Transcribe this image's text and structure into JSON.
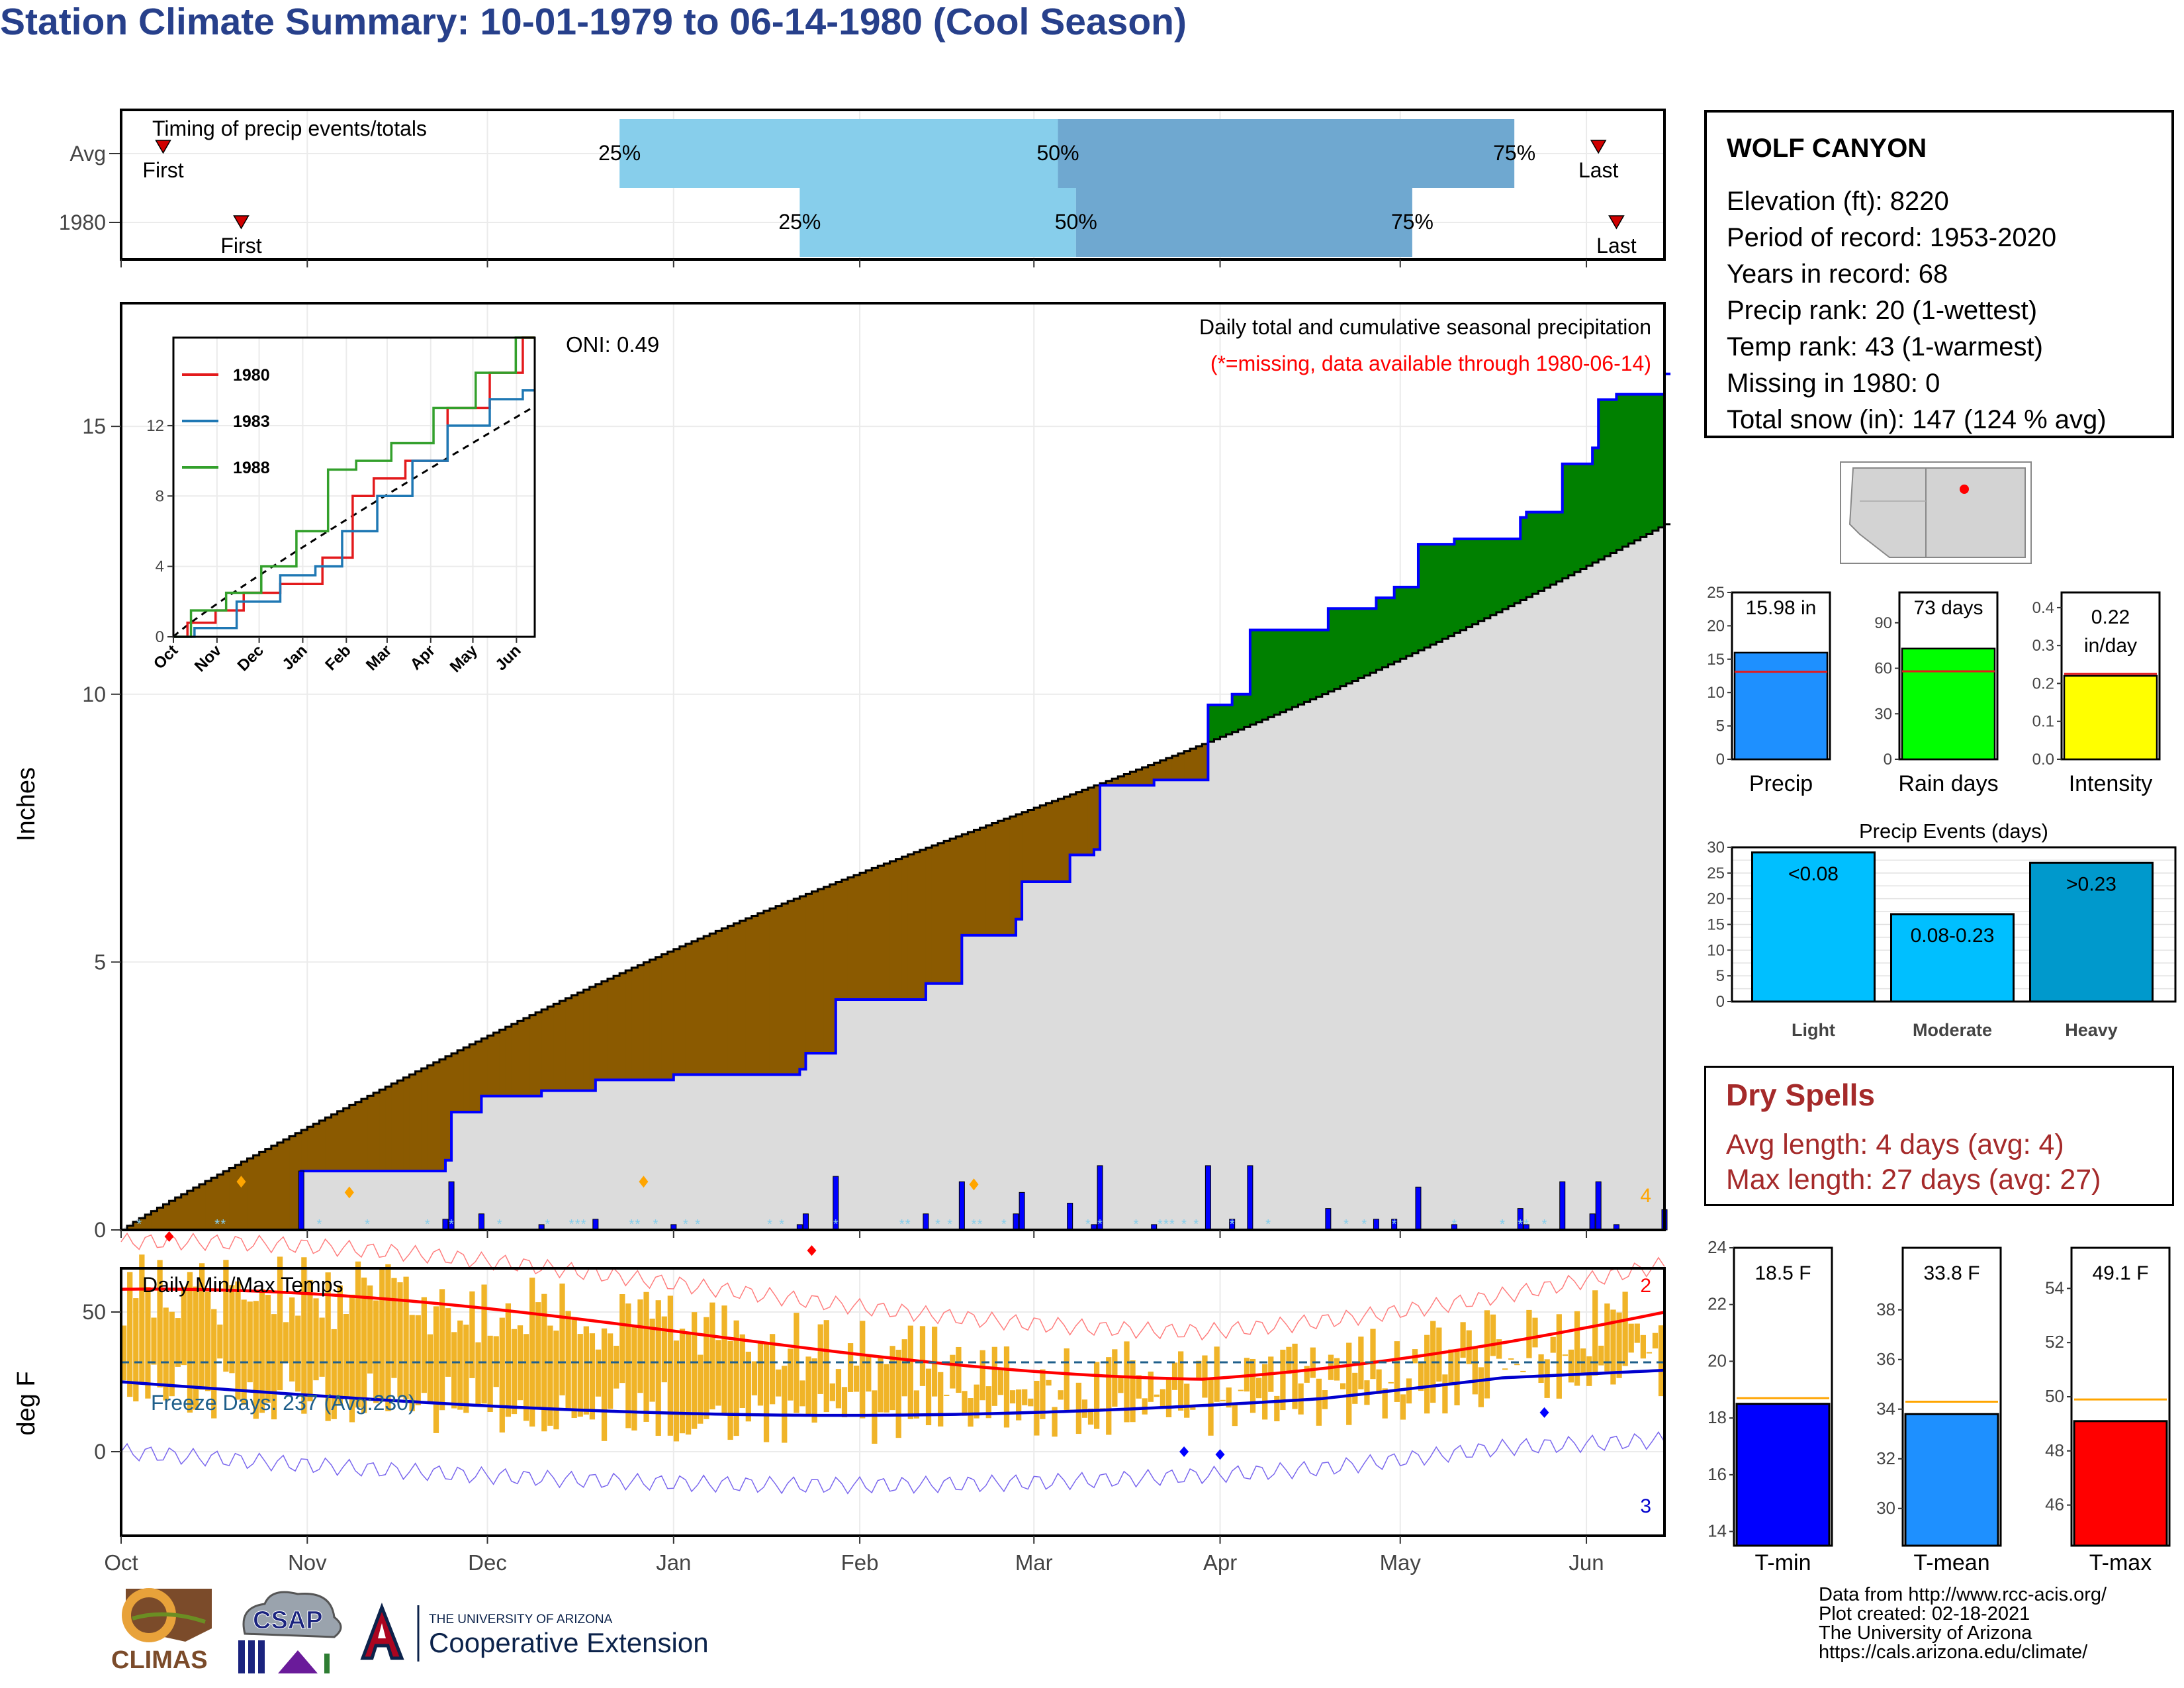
{
  "title": "Station Climate Summary: 10-01-1979 to 06-14-1980 (Cool Season)",
  "months": [
    "Oct",
    "Nov",
    "Dec",
    "Jan",
    "Feb",
    "Mar",
    "Apr",
    "May",
    "Jun"
  ],
  "timing": {
    "label": "Timing of precip events/totals",
    "rows": [
      {
        "name": "Avg",
        "first": "First",
        "last": "Last",
        "q25": "25%",
        "q50": "50%",
        "q75": "75%",
        "first_day": 7,
        "q25_day": 83,
        "q50_day": 156,
        "q75_day": 232,
        "last_day": 246
      },
      {
        "name": "1980",
        "first": "First",
        "last": "Last",
        "q25": "25%",
        "q50": "50%",
        "q75": "75%",
        "first_day": 20,
        "q25_day": 113,
        "q50_day": 159,
        "q75_day": 215,
        "last_day": 249
      }
    ],
    "colors": {
      "light": "#87ceeb",
      "dark": "#6fa8d0",
      "marker": "#d00000"
    }
  },
  "precip_panel": {
    "ylabel": "Inches",
    "yticks": [
      "0",
      "5",
      "10",
      "15"
    ],
    "title_line1": "Daily total and cumulative seasonal precipitation",
    "title_line2": "(*=missing, data available through 1980-06-14)",
    "oni": "ONI: 0.49",
    "corner_count": "4",
    "colors": {
      "wet": "#008000",
      "dry": "#8b5a00",
      "avg": "#dcdcdc",
      "obs": "#0000ff",
      "daily": "#0000ff"
    }
  },
  "inset": {
    "yticks": [
      "0",
      "4",
      "8",
      "12"
    ],
    "xticks": [
      "Oct",
      "Nov",
      "Dec",
      "Jan",
      "Feb",
      "Mar",
      "Apr",
      "May",
      "Jun"
    ],
    "legend": [
      {
        "name": "1980",
        "color": "#e31a1c"
      },
      {
        "name": "1983",
        "color": "#1f78b4"
      },
      {
        "name": "1988",
        "color": "#33a02c"
      }
    ]
  },
  "temp_panel": {
    "ylabel": "deg F",
    "yticks": [
      "0",
      "50"
    ],
    "title": "Daily Min/Max Temps",
    "freeze": "Freeze Days: 237 (Avg:230)",
    "record_high_count": "2",
    "record_low_count": "3"
  },
  "station": {
    "name": "WOLF CANYON",
    "lines": [
      "Elevation (ft): 8220",
      "Period of record: 1953-2020",
      "Years in record: 68",
      "Precip rank: 20 (1-wettest)",
      "Temp rank: 43 (1-warmest)",
      "Missing in 1980: 0",
      "Total snow (in): 147 (124 % avg)"
    ]
  },
  "mini_bars": [
    {
      "label": "Precip",
      "value_text": "15.98 in",
      "value": 15.98,
      "avg": 13.1,
      "ymax": 25,
      "ticks": [
        "0",
        "5",
        "10",
        "15",
        "20",
        "25"
      ],
      "color": "#1e90ff"
    },
    {
      "label": "Rain days",
      "value_text": "73 days",
      "value": 73,
      "avg": 58,
      "ymax": 110,
      "ticks": [
        "0",
        "30",
        "60",
        "90"
      ],
      "color": "#00ff00"
    },
    {
      "label": "Intensity",
      "value_text": "0.22 in/day",
      "value_line1": "0.22",
      "value_line2": "in/day",
      "value": 0.22,
      "avg": 0.225,
      "ymax": 0.44,
      "ticks": [
        "0.0",
        "0.1",
        "0.2",
        "0.3",
        "0.4"
      ],
      "color": "#ffff00"
    }
  ],
  "precip_events": {
    "title": "Precip Events (days)",
    "yticks": [
      "0",
      "5",
      "10",
      "15",
      "20",
      "25",
      "30"
    ],
    "bars": [
      {
        "category": "Light",
        "label": "<0.08",
        "value": 29,
        "color": "#00bfff"
      },
      {
        "category": "Moderate",
        "label": "0.08-0.23",
        "value": 17,
        "color": "#00bfff"
      },
      {
        "category": "Heavy",
        "label": ">0.23",
        "value": 27,
        "color": "#0099cc"
      }
    ]
  },
  "dry_spells": {
    "title": "Dry Spells",
    "avg": "Avg length: 4 days (avg: 4)",
    "max": "Max length: 27 days (avg: 27)"
  },
  "temp_bars": [
    {
      "label": "T-min",
      "value_text": "18.5 F",
      "value": 18.5,
      "avg": 18.7,
      "ymin": 13.5,
      "ymax": 24,
      "ticks": [
        "14",
        "16",
        "18",
        "20",
        "22",
        "24"
      ],
      "color": "#0000ff"
    },
    {
      "label": "T-mean",
      "value_text": "33.8 F",
      "value": 33.8,
      "avg": 34.3,
      "ymin": 28.5,
      "ymax": 40.5,
      "ticks": [
        "30",
        "32",
        "34",
        "36",
        "38"
      ],
      "color": "#1e90ff"
    },
    {
      "label": "T-max",
      "value_text": "49.1 F",
      "value": 49.1,
      "avg": 49.9,
      "ymin": 44.5,
      "ymax": 55.5,
      "ticks": [
        "46",
        "48",
        "50",
        "52",
        "54"
      ],
      "color": "#ff0000"
    }
  ],
  "footer": {
    "lines": [
      "Data from http://www.rcc-acis.org/",
      "Plot created: 02-18-2021",
      "The University of Arizona",
      "https://cals.arizona.edu/climate/"
    ],
    "climas": "CLIMAS",
    "csap": "CSAP",
    "ua_small": "THE UNIVERSITY OF ARIZONA",
    "ua_big": "Cooperative Extension"
  }
}
